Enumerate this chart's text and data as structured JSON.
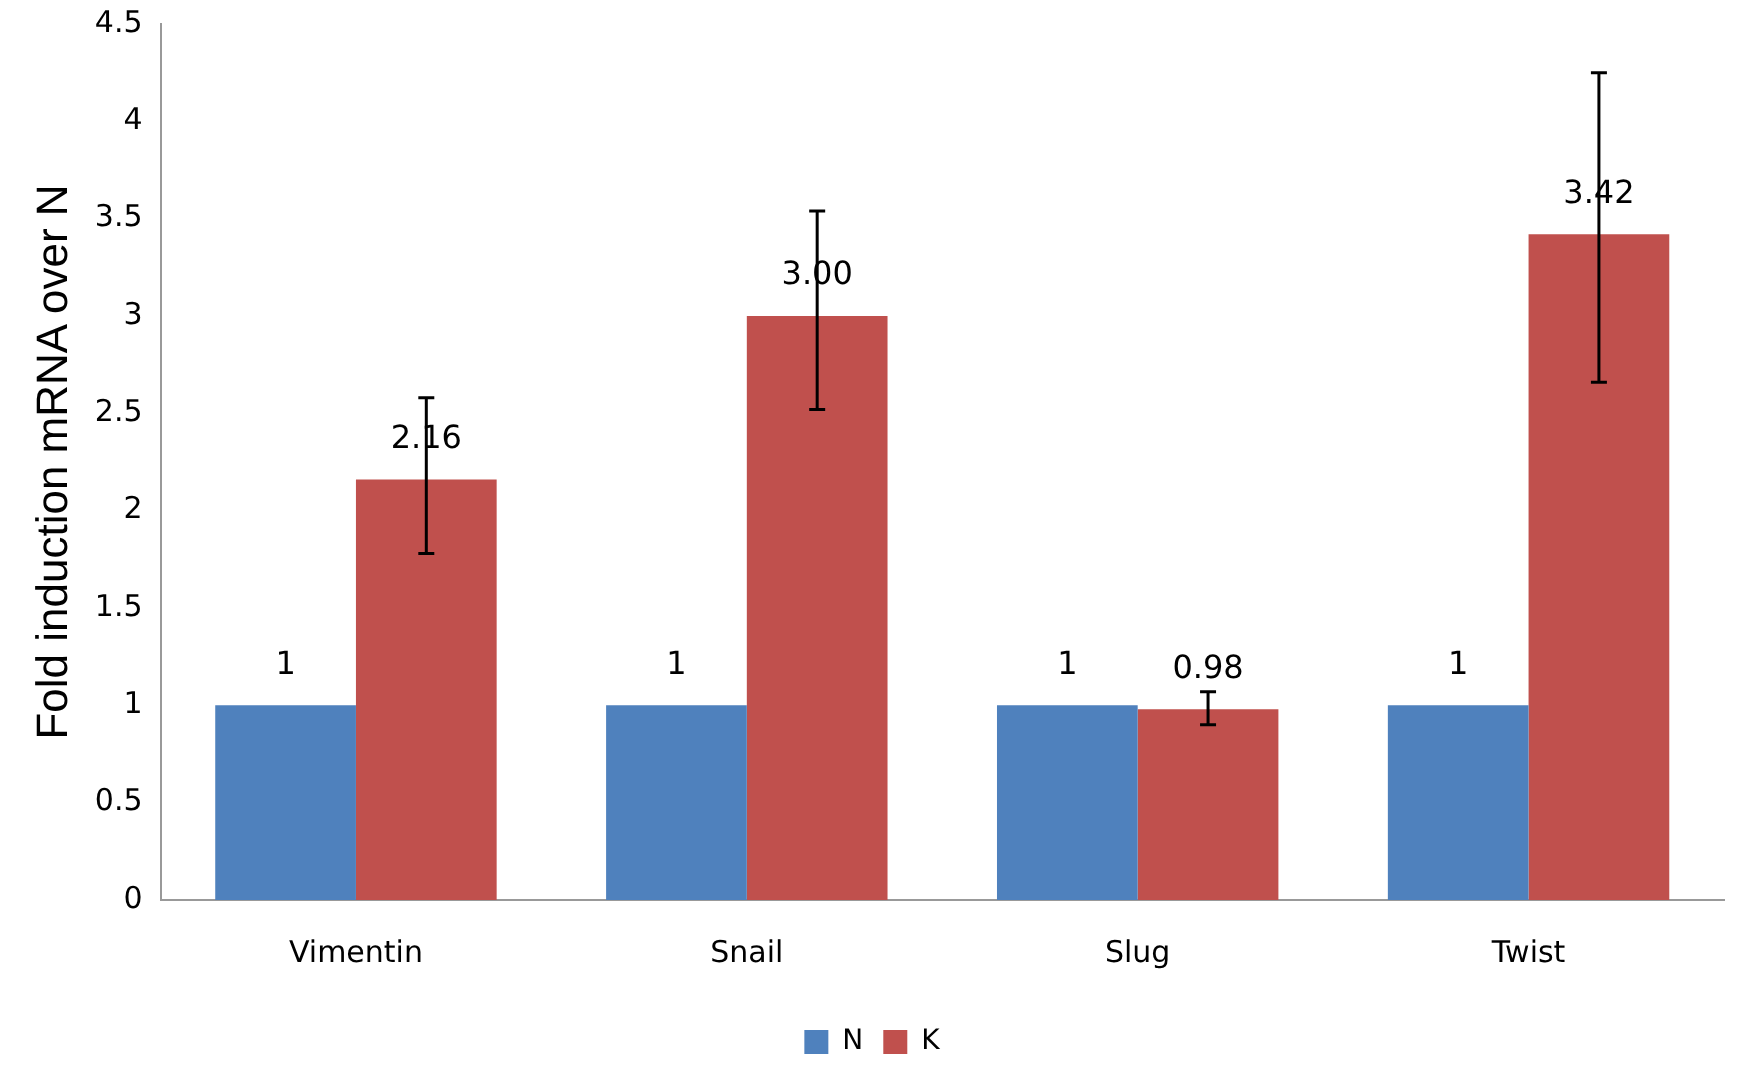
{
  "chart_data": {
    "type": "bar",
    "ylabel": "Fold induction mRNA over N",
    "categories": [
      "Vimentin",
      "Snail",
      "Slug",
      "Twist"
    ],
    "series": [
      {
        "name": "N",
        "color": "#4f81bd",
        "values": [
          1,
          1,
          1,
          1
        ],
        "value_labels": [
          "1",
          "1",
          "1",
          "1"
        ]
      },
      {
        "name": "K",
        "color": "#c0504d",
        "values": [
          2.16,
          3.0,
          0.98,
          3.42
        ],
        "value_labels": [
          "2.16",
          "3.00",
          "0.98",
          "3.42"
        ],
        "errors": [
          [
            1.78,
            2.58
          ],
          [
            2.52,
            3.54
          ],
          [
            0.9,
            1.07
          ],
          [
            2.66,
            4.25
          ]
        ]
      }
    ],
    "ylim": [
      0,
      4.5
    ],
    "yticks": [
      0,
      0.5,
      1,
      1.5,
      2,
      2.5,
      3,
      3.5,
      4,
      4.5
    ],
    "grid": false,
    "legend": "bottom"
  }
}
